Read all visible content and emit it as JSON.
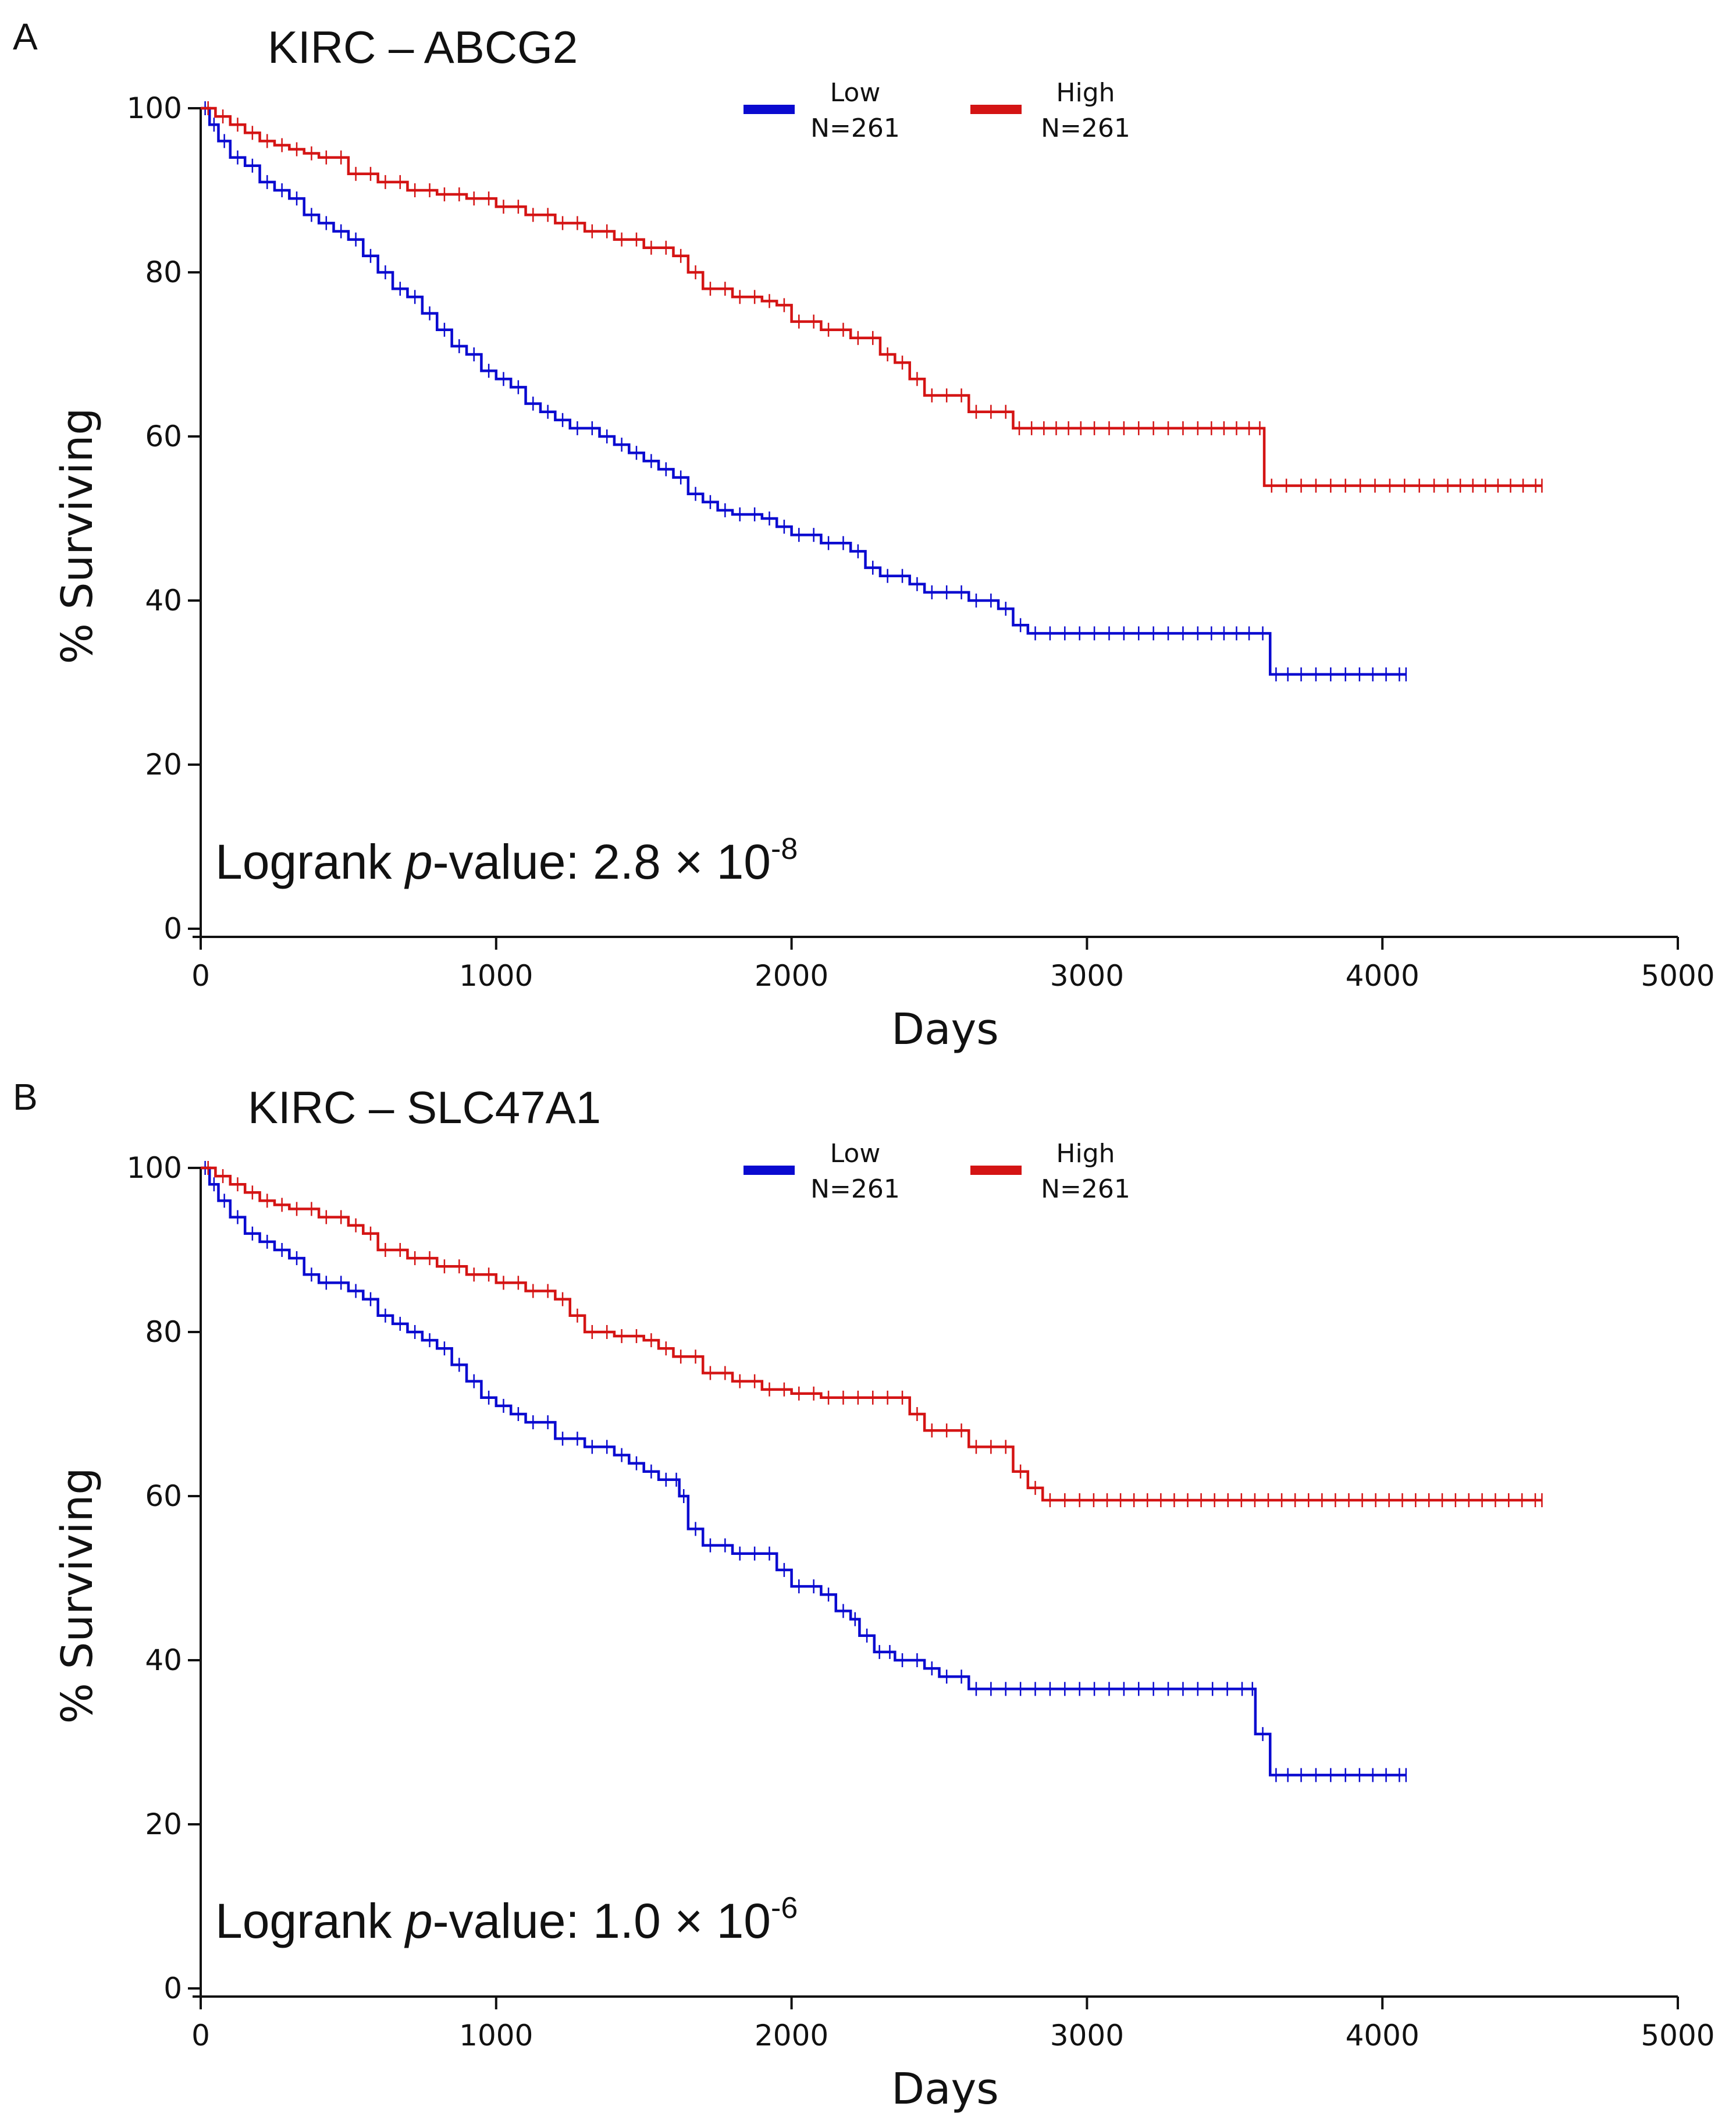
{
  "colors": {
    "low": "#0a0ad0",
    "high": "#d41414",
    "axis": "#111111"
  },
  "legend": {
    "low_label": "Low",
    "low_n": "N=261",
    "high_label": "High",
    "high_n": "N=261"
  },
  "panels": [
    {
      "letter": "A",
      "title": "KIRC – ABCG2",
      "pvalue_prefix": "Logrank ",
      "pvalue_italic": "p",
      "pvalue_mid": "-value: 2.8 × 10",
      "pvalue_exp": "-8"
    },
    {
      "letter": "B",
      "title": "KIRC – SLC47A1",
      "pvalue_prefix": "Logrank ",
      "pvalue_italic": "p",
      "pvalue_mid": "-value: 1.0 × 10",
      "pvalue_exp": "-6"
    }
  ],
  "chart_data": [
    {
      "type": "line",
      "title": "KIRC – ABCG2",
      "xlabel": "Days",
      "ylabel": "% Surviving",
      "xlim": [
        0,
        5000
      ],
      "ylim": [
        0,
        100
      ],
      "xticks": [
        0,
        1000,
        2000,
        3000,
        4000,
        5000
      ],
      "yticks": [
        0,
        20,
        40,
        60,
        80,
        100
      ],
      "legend_position": "top-center",
      "annotation": "Logrank p-value: 2.8 × 10-8",
      "series": [
        {
          "name": "Low",
          "n": "N=261",
          "color": "#0a0ad0",
          "x": [
            0,
            30,
            60,
            100,
            150,
            200,
            250,
            300,
            350,
            400,
            450,
            500,
            550,
            600,
            650,
            700,
            750,
            800,
            850,
            900,
            950,
            1000,
            1050,
            1100,
            1150,
            1200,
            1250,
            1300,
            1350,
            1400,
            1450,
            1500,
            1550,
            1600,
            1650,
            1700,
            1750,
            1800,
            1900,
            1950,
            2000,
            2100,
            2200,
            2250,
            2300,
            2400,
            2450,
            2500,
            2600,
            2700,
            2750,
            2800,
            3000,
            3200,
            3400,
            3570,
            3620,
            3700,
            3900,
            4080
          ],
          "y": [
            100,
            98,
            96,
            94,
            93,
            91,
            90,
            89,
            87,
            86,
            85,
            84,
            82,
            80,
            78,
            77,
            75,
            73,
            71,
            70,
            68,
            67,
            66,
            64,
            63,
            62,
            61,
            61,
            60,
            59,
            58,
            57,
            56,
            55,
            53,
            52,
            51,
            50.5,
            50,
            49,
            48,
            47,
            46,
            44,
            43,
            42,
            41,
            41,
            40,
            39,
            37,
            36,
            36,
            36,
            36,
            36,
            31,
            31,
            31,
            31
          ]
        },
        {
          "name": "High",
          "n": "N=261",
          "color": "#d41414",
          "x": [
            0,
            50,
            100,
            150,
            200,
            250,
            300,
            350,
            400,
            500,
            600,
            700,
            800,
            900,
            1000,
            1100,
            1200,
            1300,
            1400,
            1500,
            1600,
            1650,
            1700,
            1800,
            1900,
            1950,
            2000,
            2100,
            2200,
            2300,
            2350,
            2400,
            2450,
            2500,
            2600,
            2700,
            2750,
            3000,
            3200,
            3400,
            3570,
            3600,
            3800,
            4000,
            4200,
            4540
          ],
          "y": [
            100,
            99,
            98,
            97,
            96,
            95.5,
            95,
            94.5,
            94,
            92,
            91,
            90,
            89.5,
            89,
            88,
            87,
            86,
            85,
            84,
            83,
            82,
            80,
            78,
            77,
            76.5,
            76,
            74,
            73,
            72,
            70,
            69,
            67,
            65,
            65,
            63,
            63,
            61,
            61,
            61,
            61,
            61,
            54,
            54,
            54,
            54,
            54
          ]
        }
      ]
    },
    {
      "type": "line",
      "title": "KIRC – SLC47A1",
      "xlabel": "Days",
      "ylabel": "% Surviving",
      "xlim": [
        0,
        5000
      ],
      "ylim": [
        0,
        100
      ],
      "xticks": [
        0,
        1000,
        2000,
        3000,
        4000,
        5000
      ],
      "yticks": [
        0,
        20,
        40,
        60,
        80,
        100
      ],
      "legend_position": "top-center",
      "annotation": "Logrank p-value: 1.0 × 10-6",
      "series": [
        {
          "name": "Low",
          "n": "N=261",
          "color": "#0a0ad0",
          "x": [
            0,
            30,
            60,
            100,
            150,
            200,
            250,
            300,
            350,
            400,
            450,
            500,
            550,
            600,
            650,
            700,
            750,
            800,
            850,
            900,
            950,
            1000,
            1050,
            1100,
            1200,
            1300,
            1400,
            1450,
            1500,
            1550,
            1600,
            1620,
            1650,
            1700,
            1800,
            1900,
            1950,
            2000,
            2100,
            2150,
            2200,
            2230,
            2280,
            2350,
            2400,
            2450,
            2500,
            2600,
            2800,
            3000,
            3200,
            3400,
            3550,
            3570,
            3620,
            3700,
            3900,
            4080
          ],
          "y": [
            100,
            98,
            96,
            94,
            92,
            91,
            90,
            89,
            87,
            86,
            86,
            85,
            84,
            82,
            81,
            80,
            79,
            78,
            76,
            74,
            72,
            71,
            70,
            69,
            67,
            66,
            65,
            64,
            63,
            62,
            62,
            60,
            56,
            54,
            53,
            53,
            51,
            49,
            48,
            46,
            45,
            43,
            41,
            40,
            40,
            39,
            38,
            36.5,
            36.5,
            36.5,
            36.5,
            36.5,
            36.5,
            31,
            26,
            26,
            26,
            26
          ]
        },
        {
          "name": "High",
          "n": "N=261",
          "color": "#d41414",
          "x": [
            0,
            50,
            100,
            150,
            200,
            250,
            300,
            400,
            500,
            550,
            600,
            700,
            800,
            900,
            1000,
            1100,
            1200,
            1250,
            1300,
            1400,
            1500,
            1550,
            1600,
            1700,
            1800,
            1900,
            2000,
            2100,
            2200,
            2300,
            2400,
            2450,
            2500,
            2600,
            2700,
            2750,
            2800,
            2850,
            3000,
            3500,
            4000,
            4540
          ],
          "y": [
            100,
            99,
            98,
            97,
            96,
            95.5,
            95,
            94,
            93,
            92,
            90,
            89,
            88,
            87,
            86,
            85,
            84,
            82,
            80,
            79.5,
            79,
            78,
            77,
            75,
            74,
            73,
            72.5,
            72,
            72,
            72,
            70,
            68,
            68,
            66,
            66,
            63,
            61,
            59.5,
            59.5,
            59.5,
            59.5,
            59.5
          ]
        }
      ]
    }
  ]
}
